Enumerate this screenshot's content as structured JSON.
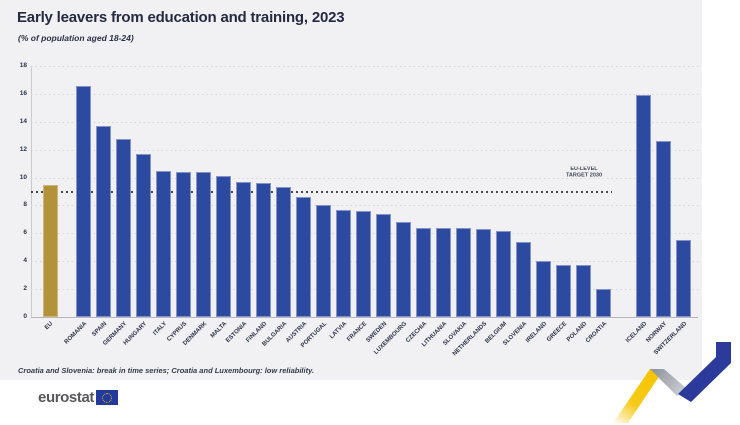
{
  "chart": {
    "title": "Early leavers from education and training, 2023",
    "subtitle": "(% of population aged 18-24)",
    "footnote": "Croatia and Slovenia: break in time series; Croatia and Luxembourg: low reliability.",
    "target_label_line1": "EU-LEVEL",
    "target_label_line2": "TARGET 2030",
    "logo_text": "eurostat"
  },
  "chart_data": {
    "type": "bar",
    "title": "Early leavers from education and training, 2023",
    "subtitle": "(% of population aged 18-24)",
    "categories": [
      "EU",
      "ROMANIA",
      "SPAIN",
      "GERMANY",
      "HUNGARY",
      "ITALY",
      "CYPRUS",
      "DENMARK",
      "MALTA",
      "ESTONIA",
      "FINLAND",
      "BULGARIA",
      "AUSTRIA",
      "PORTUGAL",
      "LATVIA",
      "FRANCE",
      "SWEDEN",
      "LUXEMBOURG",
      "CZECHIA",
      "LITHUANIA",
      "SLOVAKIA",
      "NETHERLANDS",
      "BELGIUM",
      "SLOVENIA",
      "IRELAND",
      "GREECE",
      "POLAND",
      "CROATIA",
      "ICELAND",
      "NORWAY",
      "SWITZERLAND"
    ],
    "values": [
      9.5,
      16.6,
      13.7,
      12.8,
      11.7,
      10.5,
      10.4,
      10.4,
      10.1,
      9.7,
      9.6,
      9.3,
      8.6,
      8.0,
      7.7,
      7.6,
      7.4,
      6.8,
      6.4,
      6.4,
      6.4,
      6.3,
      6.2,
      5.4,
      4.0,
      3.7,
      3.7,
      2.0,
      15.9,
      12.6,
      5.5
    ],
    "xlabel": "",
    "ylabel": "",
    "ylim": [
      0,
      18
    ],
    "ytick_step": 2,
    "grid": "dotted horizontal",
    "legend": "none",
    "highlight_category": "EU",
    "non_eu_group": [
      "ICELAND",
      "NORWAY",
      "SWITZERLAND"
    ],
    "target_line": {
      "value": 9,
      "label": "EU-LEVEL TARGET 2030"
    },
    "colors": {
      "bar": "#2d4aa1",
      "highlight_bar": "#b2923b",
      "panel_background": "#f1f1f3",
      "target_line": "#46464e",
      "gridline": "#d7d7db",
      "text": "#2b3147"
    }
  }
}
